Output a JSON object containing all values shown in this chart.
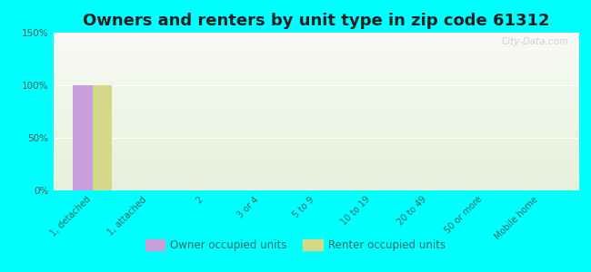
{
  "title": "Owners and renters by unit type in zip code 61312",
  "categories": [
    "1, detached",
    "1, attached",
    "2",
    "3 or 4",
    "5 to 9",
    "10 to 19",
    "20 to 49",
    "50 or more",
    "Mobile home"
  ],
  "owner_values": [
    100,
    0,
    0,
    0,
    0,
    0,
    0,
    0,
    0
  ],
  "renter_values": [
    100,
    0,
    0,
    0,
    0,
    0,
    0,
    0,
    0
  ],
  "owner_color": "#c9a0dc",
  "renter_color": "#d4d98a",
  "background_color": "#00ffff",
  "ylim": [
    0,
    150
  ],
  "yticks": [
    0,
    50,
    100,
    150
  ],
  "ytick_labels": [
    "0%",
    "50%",
    "100%",
    "150%"
  ],
  "bar_width": 0.35,
  "title_fontsize": 13,
  "legend_labels": [
    "Owner occupied units",
    "Renter occupied units"
  ],
  "watermark": "City-Data.com"
}
